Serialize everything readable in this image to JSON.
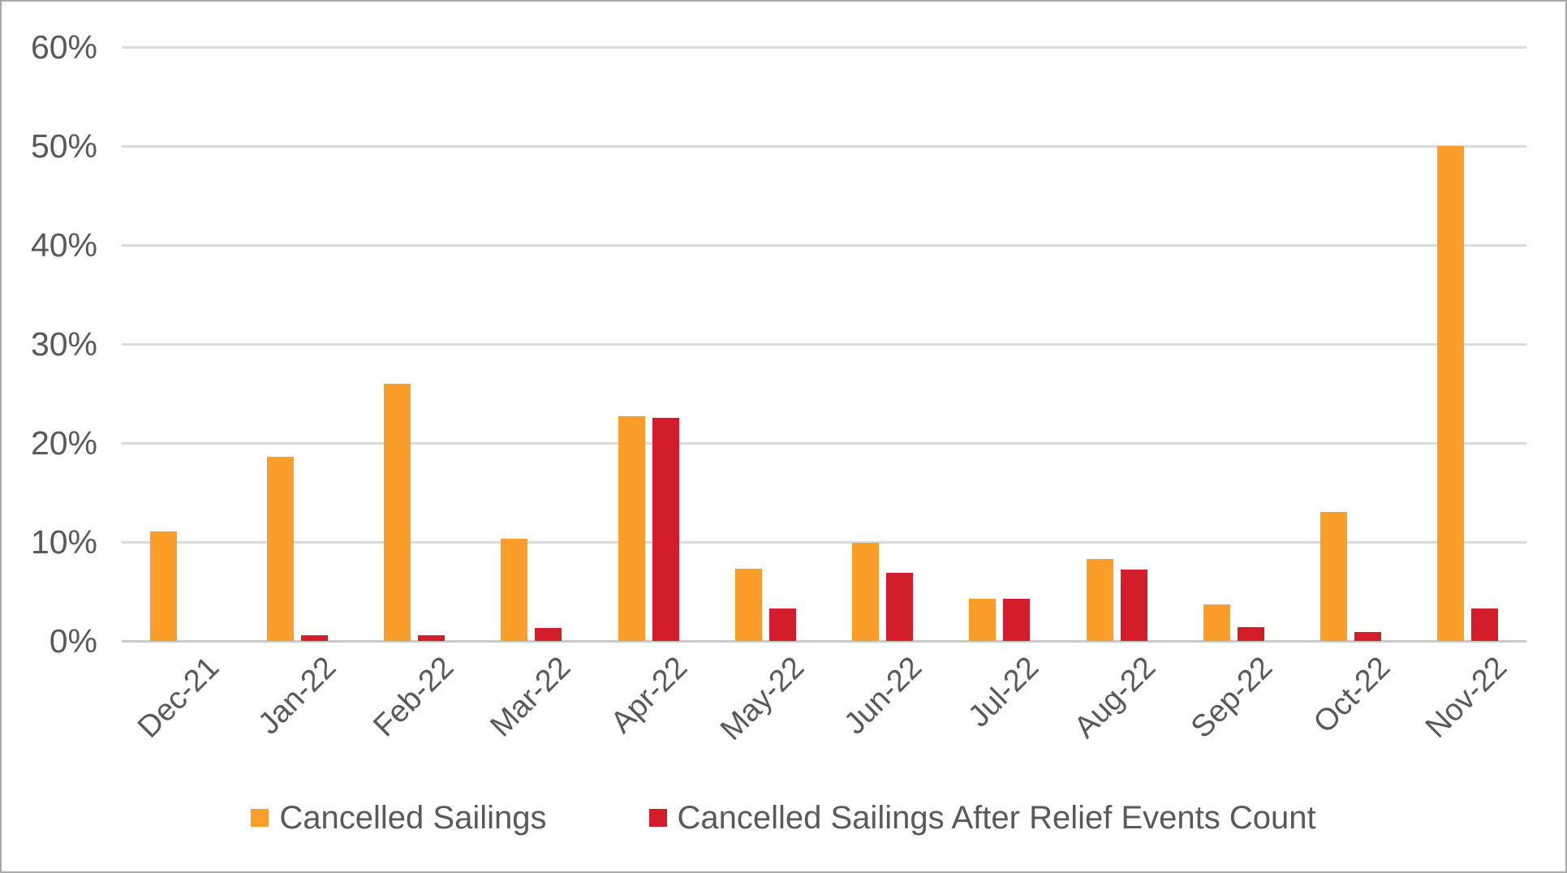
{
  "chart_data": {
    "type": "bar",
    "title": "",
    "categories": [
      "Dec-21",
      "Jan-22",
      "Feb-22",
      "Mar-22",
      "Apr-22",
      "May-22",
      "Jun-22",
      "Jul-22",
      "Aug-22",
      "Sep-22",
      "Oct-22",
      "Nov-22"
    ],
    "series": [
      {
        "name": "Cancelled Sailings",
        "color": "#FA9D29",
        "values": [
          11.1,
          18.6,
          26.0,
          10.3,
          22.7,
          7.3,
          9.9,
          4.3,
          8.3,
          3.7,
          13.0,
          50.0
        ]
      },
      {
        "name": "Cancelled Sailings After Relief Events Count",
        "color": "#D21E2B",
        "values": [
          0,
          0.6,
          0.6,
          1.3,
          22.5,
          3.3,
          6.9,
          4.3,
          7.2,
          1.4,
          0.9,
          3.3
        ]
      }
    ],
    "y_axis": {
      "unit": "%",
      "min": 0,
      "max": 60,
      "step": 10,
      "tick_labels": [
        "0%",
        "10%",
        "20%",
        "30%",
        "40%",
        "50%",
        "60%"
      ]
    },
    "x_axis": {
      "label": ""
    },
    "grid": "horizontal",
    "legend_position": "bottom"
  },
  "style": {
    "gridline_color": "#DADADA",
    "baseline_color": "#C9C9C9",
    "text_color": "#595959",
    "background": "#FFFFFF",
    "border_color": "#A9A9A9"
  }
}
